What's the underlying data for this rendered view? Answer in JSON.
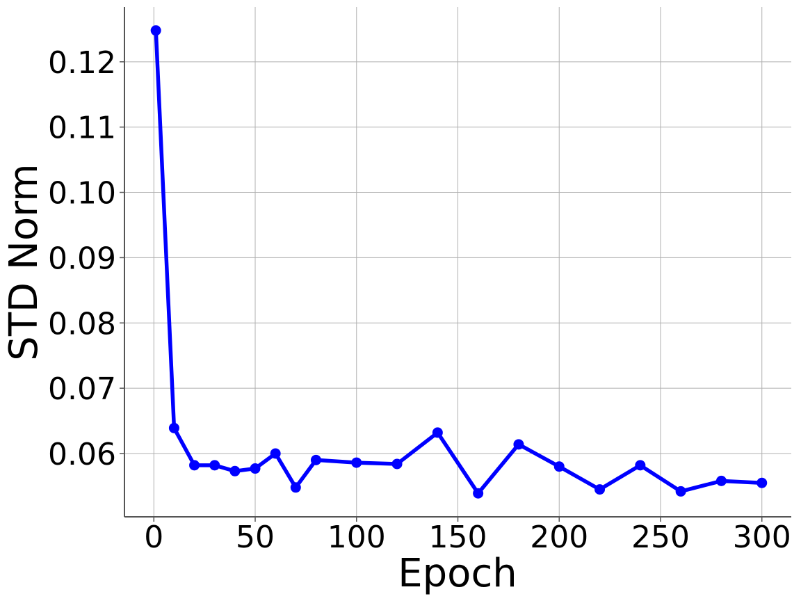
{
  "chart_data": {
    "type": "line",
    "title": "",
    "xlabel": "Epoch",
    "ylabel": "STD Norm",
    "xlim": [
      -14.5,
      314.5
    ],
    "ylim": [
      0.0503,
      0.1284
    ],
    "x_ticks": [
      0,
      50,
      100,
      150,
      200,
      250,
      300
    ],
    "x_tick_labels": [
      "0",
      "50",
      "100",
      "150",
      "200",
      "250",
      "300"
    ],
    "y_ticks": [
      0.06,
      0.07,
      0.08,
      0.09,
      0.1,
      0.11,
      0.12
    ],
    "y_tick_labels": [
      "0.06",
      "0.07",
      "0.08",
      "0.09",
      "0.10",
      "0.11",
      "0.12"
    ],
    "grid": true,
    "series": [
      {
        "color": "#0000ff",
        "marker": "circle",
        "x": [
          1,
          10,
          20,
          30,
          40,
          50,
          60,
          70,
          80,
          100,
          120,
          140,
          160,
          180,
          200,
          220,
          240,
          260,
          280,
          300
        ],
        "y": [
          0.1248,
          0.0639,
          0.0582,
          0.0582,
          0.0573,
          0.0577,
          0.06,
          0.0548,
          0.059,
          0.0586,
          0.0584,
          0.0632,
          0.0539,
          0.0614,
          0.058,
          0.0545,
          0.0582,
          0.0542,
          0.0558,
          0.0555
        ]
      }
    ]
  }
}
